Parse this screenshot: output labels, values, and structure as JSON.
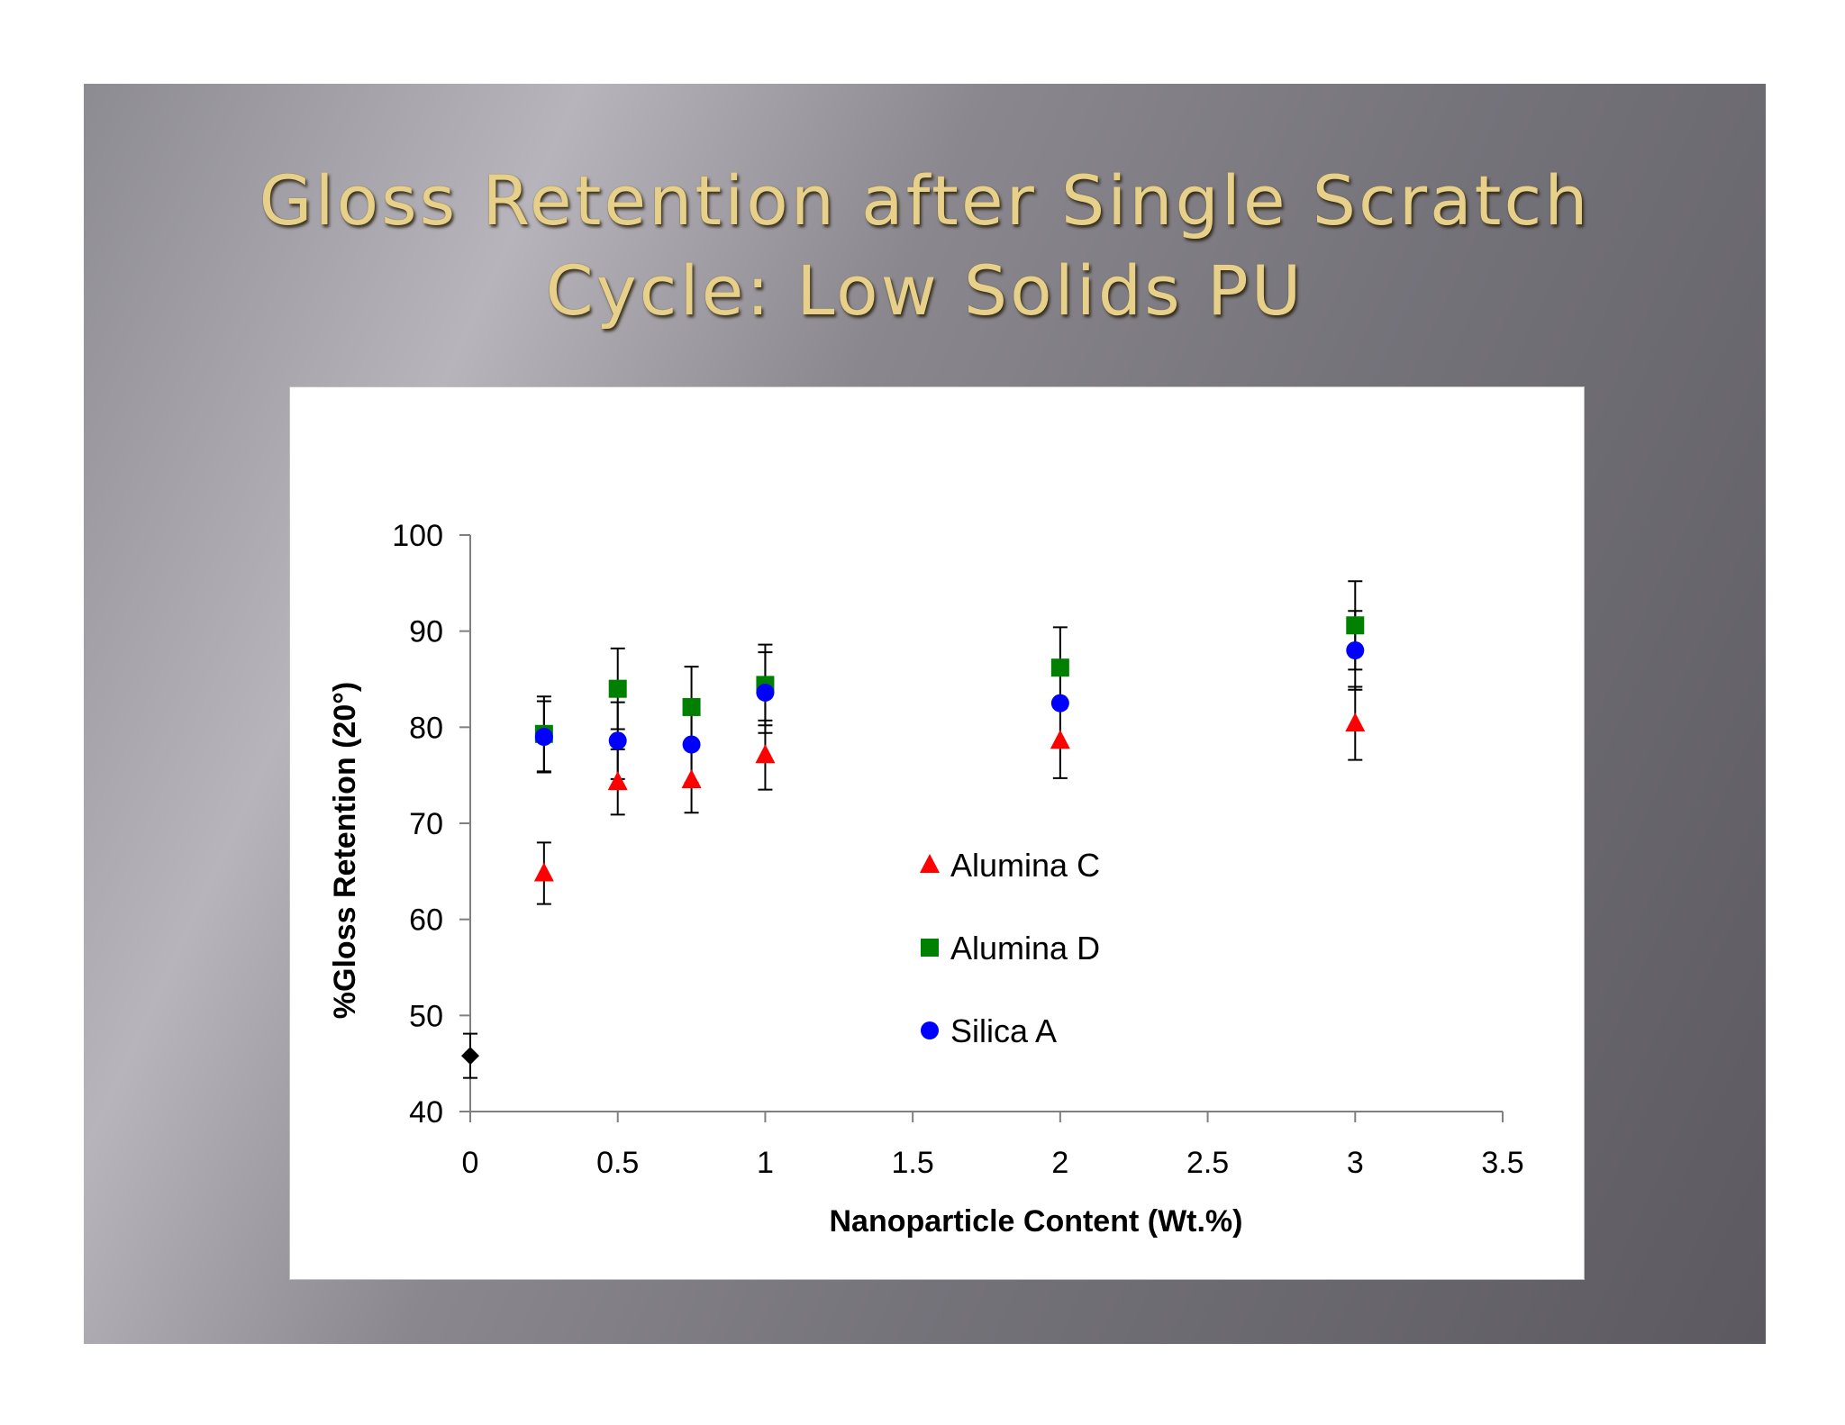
{
  "slide": {
    "title_line1": "Gloss Retention after Single Scratch",
    "title_line2": "Cycle: Low Solids PU",
    "colors": {
      "title": "#e6d08a",
      "background_light": "#b7b4bb",
      "background_dark": "#5c5a60"
    }
  },
  "chart_data": {
    "type": "scatter",
    "title": "",
    "xlabel": "Nanoparticle Content (Wt.%)",
    "ylabel": "%Gloss Retention (20°)",
    "xlim": [
      0,
      3.5
    ],
    "ylim": [
      40,
      100
    ],
    "xticks": [
      "0",
      "0.5",
      "1",
      "1.5",
      "2",
      "2.5",
      "3",
      "3.5"
    ],
    "yticks": [
      "40",
      "50",
      "60",
      "70",
      "80",
      "90",
      "100"
    ],
    "grid": false,
    "legend_position": "center",
    "error_bars": true,
    "series": [
      {
        "name": "Alumina C",
        "marker": "triangle",
        "color": "#ff0000",
        "in_legend": true,
        "x": [
          0.25,
          0.5,
          0.75,
          1,
          2,
          3
        ],
        "y": [
          64.8,
          74.3,
          74.5,
          77.1,
          78.6,
          80.4
        ],
        "err": [
          3.2,
          3.4,
          3.4,
          3.6,
          3.9,
          3.8
        ]
      },
      {
        "name": "Alumina D",
        "marker": "square",
        "color": "#008000",
        "in_legend": true,
        "x": [
          0.25,
          0.5,
          0.75,
          1,
          2,
          3
        ],
        "y": [
          79.3,
          84.0,
          82.1,
          84.4,
          86.2,
          90.6
        ],
        "err": [
          3.9,
          4.2,
          4.2,
          4.2,
          4.2,
          4.6
        ]
      },
      {
        "name": "Silica A",
        "marker": "circle",
        "color": "#0000ff",
        "in_legend": true,
        "x": [
          0.25,
          0.5,
          0.75,
          1,
          2,
          3
        ],
        "y": [
          79.0,
          78.6,
          78.2,
          83.6,
          82.5,
          88.0
        ],
        "err": [
          3.7,
          4.0,
          4.0,
          4.2,
          0,
          4.1
        ]
      },
      {
        "name": "",
        "marker": "diamond",
        "color": "#000000",
        "in_legend": false,
        "x": [
          0
        ],
        "y": [
          45.8
        ],
        "err": [
          2.3
        ]
      }
    ]
  }
}
